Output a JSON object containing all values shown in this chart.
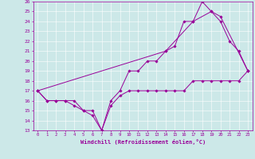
{
  "xlabel": "Windchill (Refroidissement éolien,°C)",
  "xlim": [
    -0.5,
    23.5
  ],
  "ylim": [
    13,
    26
  ],
  "yticks": [
    13,
    14,
    15,
    16,
    17,
    18,
    19,
    20,
    21,
    22,
    23,
    24,
    25,
    26
  ],
  "xticks": [
    0,
    1,
    2,
    3,
    4,
    5,
    6,
    7,
    8,
    9,
    10,
    11,
    12,
    13,
    14,
    15,
    16,
    17,
    18,
    19,
    20,
    21,
    22,
    23
  ],
  "bg_color": "#cce8e8",
  "line_color": "#990099",
  "line1_x": [
    0,
    1,
    2,
    3,
    4,
    5,
    6,
    7,
    8,
    9,
    10,
    11,
    12,
    13,
    14,
    15,
    16,
    17,
    18,
    19,
    20,
    21,
    22,
    23
  ],
  "line1_y": [
    17,
    16,
    16,
    16,
    15.5,
    15,
    14.5,
    13,
    15.5,
    16.5,
    17,
    17,
    17,
    17,
    17,
    17,
    17,
    18,
    18,
    18,
    18,
    18,
    18,
    19
  ],
  "line2_x": [
    0,
    1,
    2,
    3,
    4,
    5,
    6,
    7,
    8,
    9,
    10,
    11,
    12,
    13,
    14,
    15,
    16,
    17,
    18,
    19,
    20,
    21,
    22,
    23
  ],
  "line2_y": [
    17,
    16,
    16,
    16,
    16,
    15,
    15,
    13,
    16,
    17,
    19,
    19,
    20,
    20,
    21,
    21.5,
    24,
    24,
    26,
    25,
    24,
    22,
    21,
    19
  ],
  "line3_x": [
    0,
    14,
    17,
    19,
    20,
    23
  ],
  "line3_y": [
    17,
    21,
    24,
    25,
    24.5,
    19
  ]
}
